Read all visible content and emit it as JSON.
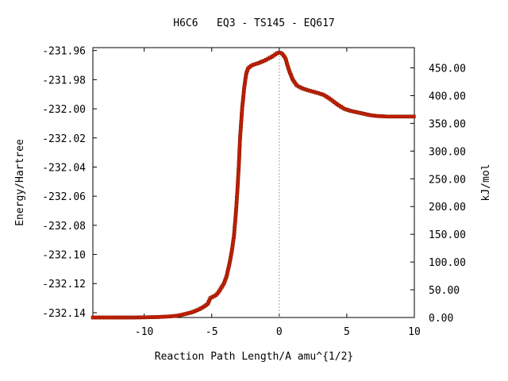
{
  "chart_data": {
    "type": "line",
    "title": "H6C6   EQ3 - TS145 - EQ617",
    "xlabel": "Reaction Path Length/A amu^{1/2}",
    "ylabel_left": "Energy/Hartree",
    "ylabel_right": "kJ/mol",
    "xlim": [
      -13.8,
      10
    ],
    "ylim": [
      -232.1433,
      -231.958
    ],
    "grid": false,
    "legend": "none",
    "colors": {
      "line": "#00a000",
      "marker": "#cc2200",
      "marker_edge": "#8a1500",
      "ts_marker": "#a0a0a0"
    },
    "x_ticks": [
      -10,
      -5,
      0,
      5,
      10
    ],
    "x_tick_labels": [
      "-10",
      "-5",
      "0",
      "5",
      "10"
    ],
    "y_left_ticks": [
      -232.14,
      -232.12,
      -232.1,
      -232.08,
      -232.06,
      -232.04,
      -232.02,
      -232.0,
      -231.98,
      -231.96
    ],
    "y_left_tick_labels": [
      "-232.14",
      "-232.12",
      "-232.10",
      "-232.08",
      "-232.06",
      "-232.04",
      "-232.02",
      "-232.00",
      "-231.98",
      "-231.96"
    ],
    "y_right_ticks": [
      0,
      50,
      100,
      150,
      200,
      250,
      300,
      350,
      400,
      450
    ],
    "y_right_tick_labels": [
      "0.00",
      "50.00",
      "100.00",
      "150.00",
      "200.00",
      "250.00",
      "300.00",
      "350.00",
      "400.00",
      "450.00"
    ],
    "transition_state_x": 0,
    "series": [
      {
        "points": [
          [
            -13.8,
            -232.1433
          ],
          [
            -13.0,
            -232.1433
          ],
          [
            -12.0,
            -232.1433
          ],
          [
            -11.0,
            -232.1433
          ],
          [
            -10.0,
            -232.1432
          ],
          [
            -9.0,
            -232.143
          ],
          [
            -8.0,
            -232.1425
          ],
          [
            -7.5,
            -232.142
          ],
          [
            -7.0,
            -232.141
          ],
          [
            -6.5,
            -232.1398
          ],
          [
            -6.0,
            -232.138
          ],
          [
            -5.6,
            -232.136
          ],
          [
            -5.3,
            -232.134
          ],
          [
            -5.1,
            -232.13
          ],
          [
            -4.9,
            -232.129
          ],
          [
            -4.7,
            -232.128
          ],
          [
            -4.5,
            -232.126
          ],
          [
            -4.3,
            -232.123
          ],
          [
            -4.1,
            -232.12
          ],
          [
            -3.9,
            -232.115
          ],
          [
            -3.7,
            -232.107
          ],
          [
            -3.5,
            -232.097
          ],
          [
            -3.35,
            -232.087
          ],
          [
            -3.2,
            -232.07
          ],
          [
            -3.1,
            -232.056
          ],
          [
            -3.0,
            -232.04
          ],
          [
            -2.9,
            -232.02
          ],
          [
            -2.75,
            -232.0
          ],
          [
            -2.6,
            -231.986
          ],
          [
            -2.45,
            -231.976
          ],
          [
            -2.3,
            -231.972
          ],
          [
            -2.0,
            -231.97
          ],
          [
            -1.5,
            -231.9685
          ],
          [
            -1.0,
            -231.9665
          ],
          [
            -0.5,
            -231.964
          ],
          [
            -0.2,
            -231.962
          ],
          [
            0.0,
            -231.9613
          ],
          [
            0.2,
            -231.962
          ],
          [
            0.45,
            -231.965
          ],
          [
            0.7,
            -231.973
          ],
          [
            1.0,
            -231.98
          ],
          [
            1.3,
            -231.984
          ],
          [
            1.7,
            -231.986
          ],
          [
            2.2,
            -231.9875
          ],
          [
            2.8,
            -231.989
          ],
          [
            3.3,
            -231.9905
          ],
          [
            3.8,
            -231.9935
          ],
          [
            4.3,
            -231.997
          ],
          [
            4.8,
            -232.0
          ],
          [
            5.3,
            -232.0015
          ],
          [
            5.8,
            -232.0025
          ],
          [
            6.3,
            -232.0035
          ],
          [
            6.8,
            -232.0045
          ],
          [
            7.3,
            -232.005
          ],
          [
            8.0,
            -232.0053
          ],
          [
            9.0,
            -232.0053
          ],
          [
            10.0,
            -232.0053
          ]
        ]
      }
    ]
  }
}
